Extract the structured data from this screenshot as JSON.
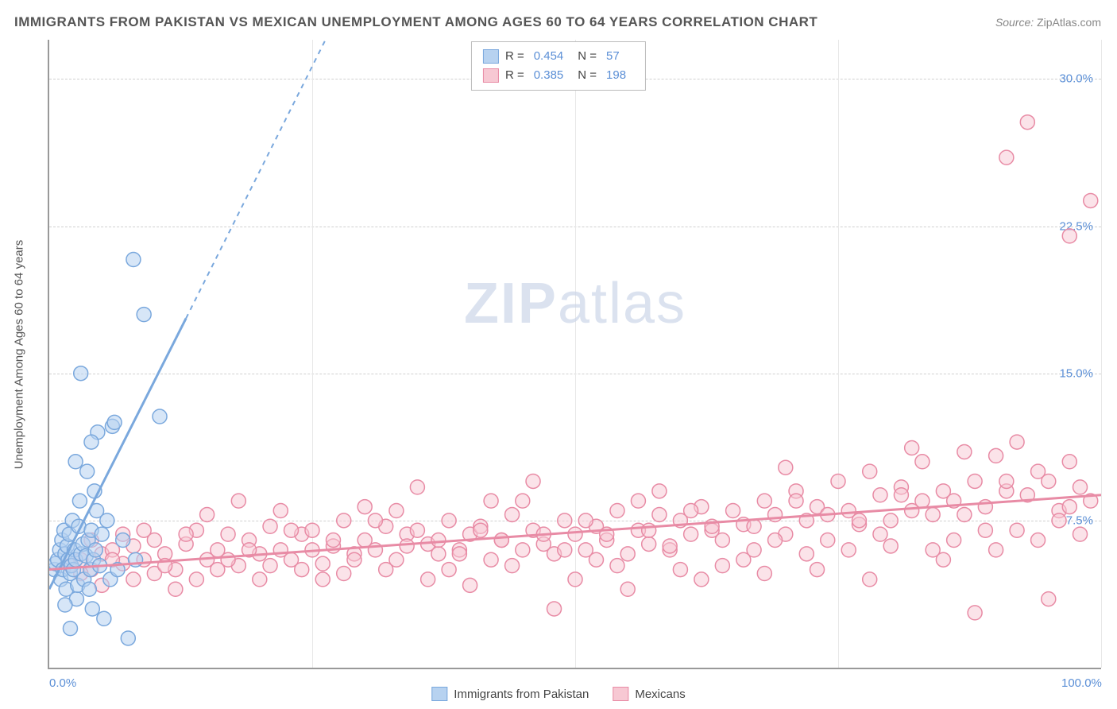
{
  "title": "IMMIGRANTS FROM PAKISTAN VS MEXICAN UNEMPLOYMENT AMONG AGES 60 TO 64 YEARS CORRELATION CHART",
  "source_label": "Source:",
  "source_value": "ZipAtlas.com",
  "ylabel": "Unemployment Among Ages 60 to 64 years",
  "watermark_bold": "ZIP",
  "watermark_light": "atlas",
  "chart": {
    "type": "scatter",
    "xlim": [
      0,
      100
    ],
    "ylim": [
      0,
      32
    ],
    "xtick_labels": {
      "0": "0.0%",
      "100": "100.0%"
    },
    "ytick_labels": {
      "7.5": "7.5%",
      "15": "15.0%",
      "22.5": "22.5%",
      "30": "30.0%"
    },
    "vgrid_positions": [
      25,
      50,
      75,
      100
    ],
    "background_color": "#ffffff",
    "grid_color": "#d0d0d0",
    "axis_color": "#999999",
    "tick_label_color": "#5b8fd6",
    "marker_radius": 9,
    "marker_stroke_width": 1.5,
    "trend_line_width": 3,
    "series": [
      {
        "name": "Immigrants from Pakistan",
        "R": "0.454",
        "N": "57",
        "color_fill": "#b7d2f0",
        "color_stroke": "#7aa8dd",
        "color_fill_opacity": 0.55,
        "trend": {
          "x1": 0,
          "y1": 4.0,
          "x2": 13,
          "y2": 17.8,
          "x3": 30,
          "y3": 36,
          "dashed_from_x": 13
        },
        "points": [
          [
            0.5,
            5.0
          ],
          [
            0.6,
            5.3
          ],
          [
            0.8,
            5.5
          ],
          [
            1.0,
            6.0
          ],
          [
            1.1,
            4.5
          ],
          [
            1.2,
            6.5
          ],
          [
            1.3,
            5.0
          ],
          [
            1.4,
            7.0
          ],
          [
            1.5,
            5.8
          ],
          [
            1.6,
            4.0
          ],
          [
            1.7,
            6.2
          ],
          [
            1.8,
            5.5
          ],
          [
            1.9,
            6.8
          ],
          [
            2.0,
            4.8
          ],
          [
            2.1,
            5.2
          ],
          [
            2.2,
            7.5
          ],
          [
            2.3,
            5.0
          ],
          [
            2.4,
            6.0
          ],
          [
            2.5,
            5.5
          ],
          [
            2.6,
            3.5
          ],
          [
            2.7,
            4.2
          ],
          [
            2.8,
            7.2
          ],
          [
            2.9,
            8.5
          ],
          [
            3.0,
            5.8
          ],
          [
            3.2,
            6.3
          ],
          [
            3.3,
            4.5
          ],
          [
            3.5,
            5.7
          ],
          [
            3.6,
            10.0
          ],
          [
            3.7,
            6.5
          ],
          [
            3.8,
            4.0
          ],
          [
            3.9,
            5.0
          ],
          [
            4.0,
            7.0
          ],
          [
            4.1,
            3.0
          ],
          [
            4.2,
            5.5
          ],
          [
            4.3,
            9.0
          ],
          [
            4.4,
            6.0
          ],
          [
            4.5,
            8.0
          ],
          [
            4.6,
            12.0
          ],
          [
            4.8,
            5.2
          ],
          [
            5.0,
            6.8
          ],
          [
            5.2,
            2.5
          ],
          [
            5.5,
            7.5
          ],
          [
            5.8,
            4.5
          ],
          [
            6.0,
            12.3
          ],
          [
            6.2,
            12.5
          ],
          [
            6.5,
            5.0
          ],
          [
            7.0,
            6.5
          ],
          [
            7.5,
            1.5
          ],
          [
            8.0,
            20.8
          ],
          [
            8.2,
            5.5
          ],
          [
            9.0,
            18.0
          ],
          [
            10.5,
            12.8
          ],
          [
            3.0,
            15.0
          ],
          [
            2.5,
            10.5
          ],
          [
            4.0,
            11.5
          ],
          [
            1.5,
            3.2
          ],
          [
            2.0,
            2.0
          ]
        ]
      },
      {
        "name": "Mexicans",
        "R": "0.385",
        "N": "198",
        "color_fill": "#f7c8d3",
        "color_stroke": "#e88ba5",
        "color_fill_opacity": 0.5,
        "trend": {
          "x1": 0,
          "y1": 5.0,
          "x2": 100,
          "y2": 8.8
        },
        "points": [
          [
            2,
            5.2
          ],
          [
            3,
            5.5
          ],
          [
            4,
            5.0
          ],
          [
            5,
            5.8
          ],
          [
            6,
            6.0
          ],
          [
            7,
            5.3
          ],
          [
            8,
            6.2
          ],
          [
            9,
            5.5
          ],
          [
            10,
            6.5
          ],
          [
            11,
            5.8
          ],
          [
            12,
            5.0
          ],
          [
            13,
            6.3
          ],
          [
            14,
            7.0
          ],
          [
            15,
            5.5
          ],
          [
            16,
            6.0
          ],
          [
            17,
            6.8
          ],
          [
            18,
            5.2
          ],
          [
            19,
            6.5
          ],
          [
            20,
            5.8
          ],
          [
            21,
            7.2
          ],
          [
            22,
            6.0
          ],
          [
            23,
            5.5
          ],
          [
            24,
            6.8
          ],
          [
            25,
            7.0
          ],
          [
            26,
            5.3
          ],
          [
            27,
            6.2
          ],
          [
            28,
            7.5
          ],
          [
            29,
            5.8
          ],
          [
            30,
            6.5
          ],
          [
            31,
            6.0
          ],
          [
            32,
            7.2
          ],
          [
            33,
            5.5
          ],
          [
            34,
            6.8
          ],
          [
            35,
            7.0
          ],
          [
            36,
            6.3
          ],
          [
            37,
            5.8
          ],
          [
            38,
            7.5
          ],
          [
            39,
            6.0
          ],
          [
            40,
            6.8
          ],
          [
            41,
            7.2
          ],
          [
            42,
            5.5
          ],
          [
            43,
            6.5
          ],
          [
            44,
            7.8
          ],
          [
            45,
            6.0
          ],
          [
            46,
            7.0
          ],
          [
            47,
            6.3
          ],
          [
            48,
            5.8
          ],
          [
            49,
            7.5
          ],
          [
            50,
            6.8
          ],
          [
            51,
            6.0
          ],
          [
            52,
            7.2
          ],
          [
            53,
            6.5
          ],
          [
            54,
            8.0
          ],
          [
            55,
            5.8
          ],
          [
            56,
            7.0
          ],
          [
            57,
            6.3
          ],
          [
            58,
            7.8
          ],
          [
            59,
            6.0
          ],
          [
            60,
            7.5
          ],
          [
            61,
            6.8
          ],
          [
            62,
            8.2
          ],
          [
            63,
            7.0
          ],
          [
            64,
            6.5
          ],
          [
            65,
            8.0
          ],
          [
            66,
            7.3
          ],
          [
            67,
            6.0
          ],
          [
            68,
            8.5
          ],
          [
            69,
            7.8
          ],
          [
            70,
            6.8
          ],
          [
            71,
            9.0
          ],
          [
            72,
            7.5
          ],
          [
            73,
            8.2
          ],
          [
            74,
            6.5
          ],
          [
            75,
            9.5
          ],
          [
            76,
            8.0
          ],
          [
            77,
            7.3
          ],
          [
            78,
            10.0
          ],
          [
            79,
            8.8
          ],
          [
            80,
            7.5
          ],
          [
            81,
            9.2
          ],
          [
            82,
            8.0
          ],
          [
            83,
            10.5
          ],
          [
            84,
            7.8
          ],
          [
            85,
            9.0
          ],
          [
            86,
            8.5
          ],
          [
            87,
            11.0
          ],
          [
            88,
            9.5
          ],
          [
            89,
            8.2
          ],
          [
            90,
            10.8
          ],
          [
            91,
            9.0
          ],
          [
            92,
            11.5
          ],
          [
            93,
            8.8
          ],
          [
            94,
            10.0
          ],
          [
            95,
            9.5
          ],
          [
            96,
            8.0
          ],
          [
            97,
            10.5
          ],
          [
            98,
            9.2
          ],
          [
            99,
            8.5
          ],
          [
            35,
            9.2
          ],
          [
            48,
            3.0
          ],
          [
            62,
            4.5
          ],
          [
            73,
            5.0
          ],
          [
            88,
            2.8
          ],
          [
            95,
            3.5
          ],
          [
            12,
            4.0
          ],
          [
            20,
            4.5
          ],
          [
            28,
            4.8
          ],
          [
            15,
            7.8
          ],
          [
            40,
            4.2
          ],
          [
            55,
            4.0
          ],
          [
            68,
            4.8
          ],
          [
            78,
            4.5
          ],
          [
            85,
            5.5
          ],
          [
            90,
            6.0
          ],
          [
            8,
            4.5
          ],
          [
            18,
            8.5
          ],
          [
            33,
            8.0
          ],
          [
            45,
            8.5
          ],
          [
            58,
            9.0
          ],
          [
            70,
            10.2
          ],
          [
            82,
            11.2
          ],
          [
            3,
            4.8
          ],
          [
            5,
            4.2
          ],
          [
            7,
            6.8
          ],
          [
            10,
            4.8
          ],
          [
            14,
            4.5
          ],
          [
            22,
            8.0
          ],
          [
            26,
            4.5
          ],
          [
            30,
            8.2
          ],
          [
            36,
            4.5
          ],
          [
            42,
            8.5
          ],
          [
            50,
            4.5
          ],
          [
            54,
            5.2
          ],
          [
            60,
            5.0
          ],
          [
            66,
            5.5
          ],
          [
            72,
            5.8
          ],
          [
            80,
            6.2
          ],
          [
            86,
            6.5
          ],
          [
            92,
            7.0
          ],
          [
            96,
            7.5
          ],
          [
            4,
            6.5
          ],
          [
            9,
            7.0
          ],
          [
            16,
            5.0
          ],
          [
            24,
            5.0
          ],
          [
            32,
            5.0
          ],
          [
            38,
            5.0
          ],
          [
            44,
            5.2
          ],
          [
            52,
            5.5
          ],
          [
            64,
            5.2
          ],
          [
            76,
            6.0
          ],
          [
            84,
            6.0
          ],
          [
            94,
            6.5
          ],
          [
            98,
            6.8
          ],
          [
            6,
            5.5
          ],
          [
            11,
            5.2
          ],
          [
            19,
            6.0
          ],
          [
            27,
            6.5
          ],
          [
            37,
            6.5
          ],
          [
            47,
            6.8
          ],
          [
            57,
            7.0
          ],
          [
            67,
            7.2
          ],
          [
            77,
            7.5
          ],
          [
            87,
            7.8
          ],
          [
            97,
            8.2
          ],
          [
            13,
            6.8
          ],
          [
            23,
            7.0
          ],
          [
            31,
            7.5
          ],
          [
            41,
            7.0
          ],
          [
            51,
            7.5
          ],
          [
            61,
            8.0
          ],
          [
            71,
            8.5
          ],
          [
            81,
            8.8
          ],
          [
            91,
            9.5
          ],
          [
            21,
            5.2
          ],
          [
            29,
            5.5
          ],
          [
            39,
            5.8
          ],
          [
            49,
            6.0
          ],
          [
            59,
            6.2
          ],
          [
            69,
            6.5
          ],
          [
            79,
            6.8
          ],
          [
            89,
            7.0
          ],
          [
            93,
            27.8
          ],
          [
            97,
            22.0
          ],
          [
            99,
            23.8
          ],
          [
            91,
            26.0
          ],
          [
            17,
            5.5
          ],
          [
            25,
            6.0
          ],
          [
            34,
            6.2
          ],
          [
            43,
            6.5
          ],
          [
            53,
            6.8
          ],
          [
            63,
            7.2
          ],
          [
            74,
            7.8
          ],
          [
            83,
            8.5
          ],
          [
            46,
            9.5
          ],
          [
            56,
            8.5
          ]
        ]
      }
    ]
  },
  "bottom_legend": [
    {
      "label": "Immigrants from Pakistan",
      "fill": "#b7d2f0",
      "stroke": "#7aa8dd"
    },
    {
      "label": "Mexicans",
      "fill": "#f7c8d3",
      "stroke": "#e88ba5"
    }
  ]
}
